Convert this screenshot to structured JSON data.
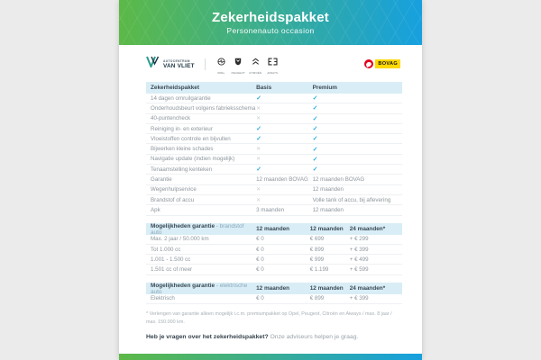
{
  "header": {
    "title": "Zekerheidspakket",
    "subtitle": "Personenauto occasion"
  },
  "brandbar": {
    "dealer_line1": "AUTOCENTRUM",
    "dealer_line2": "VAN VLIET",
    "brands": [
      {
        "name": "Opel"
      },
      {
        "name": "Peugeot"
      },
      {
        "name": "Citroën"
      },
      {
        "name": "Aiways"
      }
    ],
    "bovag_label": "BOVAG"
  },
  "package_table": {
    "columns": [
      "Zekerheidspakket",
      "Basis",
      "Premium"
    ],
    "rows": [
      {
        "label": "14 dagen omruilgarantie",
        "basis": "✓",
        "premium": "✓"
      },
      {
        "label": "Onderhoudsbeurt volgens fabrieksschema",
        "basis": "✗",
        "premium": "✓"
      },
      {
        "label": "40-puntencheck",
        "basis": "✗",
        "premium": "✓"
      },
      {
        "label": "Reiniging in- en exterieur",
        "basis": "✓",
        "premium": "✓"
      },
      {
        "label": "Vloeistoffen controle en bijvullen",
        "basis": "✓",
        "premium": "✓"
      },
      {
        "label": "Bijwerken kleine schades",
        "basis": "✗",
        "premium": "✓"
      },
      {
        "label": "Navigatie update (indien mogelijk)",
        "basis": "✗",
        "premium": "✓"
      },
      {
        "label": "Tenaamstelling kenteken",
        "basis": "✓",
        "premium": "✓"
      },
      {
        "label": "Garantie",
        "basis": "12 maanden BOVAG",
        "premium": "12 maanden BOVAG"
      },
      {
        "label": "Wegenhulpservice",
        "basis": "✗",
        "premium": "12 maanden"
      },
      {
        "label": "Brandstof of accu",
        "basis": "✗",
        "premium": "Volle tank of accu, bij aflevering"
      },
      {
        "label": "Apk",
        "basis": "3 maanden",
        "premium": "12 maanden"
      }
    ]
  },
  "fuel_table": {
    "title": "Mogelijkheden garantie",
    "title_suffix": " - brandstof auto",
    "columns": [
      "12 maanden",
      "12 maanden",
      "24 maanden*"
    ],
    "rows": [
      {
        "label": "Max. 2 jaar / 50.000 km",
        "c1": "€ 0",
        "c2": "€ 699",
        "c3": "+ € 299"
      },
      {
        "label": "Tot 1.000 cc",
        "c1": "€ 0",
        "c2": "€ 899",
        "c3": "+ € 399"
      },
      {
        "label": "1.001 - 1.500 cc",
        "c1": "€ 0",
        "c2": "€ 999",
        "c3": "+ € 499"
      },
      {
        "label": "1.501 cc of meer",
        "c1": "€ 0",
        "c2": "€ 1.199",
        "c3": "+ € 599"
      }
    ]
  },
  "electric_table": {
    "title": "Mogelijkheden garantie",
    "title_suffix": " - elektrische auto",
    "columns": [
      "12 maanden",
      "12 maanden",
      "24 maanden*"
    ],
    "rows": [
      {
        "label": "Elektrisch",
        "c1": "€ 0",
        "c2": "€ 899",
        "c3": "+ € 399"
      }
    ]
  },
  "footnote": "* Verlengen van garantie alleen mogelijk i.c.m. premiumpakket op Opel, Peugeot, Citroën en Aiways / max. 8 jaar / max. 150.000 km.",
  "footer": {
    "question_bold": "Heb je vragen over het zekerheidspakket?",
    "question_rest": " Onze adviseurs helpen je graag."
  },
  "colors": {
    "gradient_from": "#5cb947",
    "gradient_to": "#16a0df",
    "check": "#29abe2",
    "cross": "#c9cfd4",
    "table_header_bg": "#d9edf6",
    "bovag_red": "#e2001a",
    "bovag_yellow": "#ffd900"
  }
}
